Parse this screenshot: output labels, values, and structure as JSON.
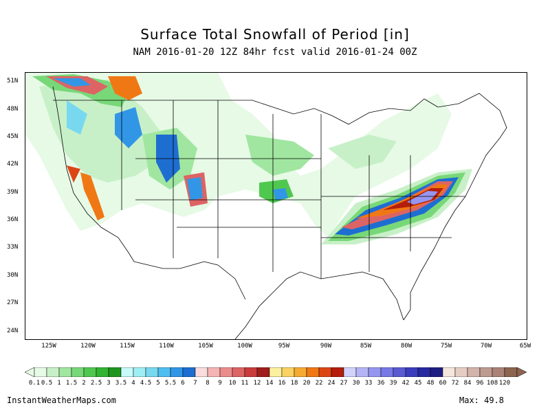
{
  "title": "Surface Total Snowfall of Period [in]",
  "subtitle": "NAM 2016-01-20 12Z 84hr fcst valid 2016-01-24 00Z",
  "lat_labels": [
    "51N",
    "48N",
    "45N",
    "42N",
    "39N",
    "36N",
    "33N",
    "30N",
    "27N",
    "24N"
  ],
  "lon_labels": [
    "125W",
    "120W",
    "115W",
    "110W",
    "105W",
    "100W",
    "95W",
    "90W",
    "85W",
    "80W",
    "75W",
    "70W",
    "65W"
  ],
  "legend": {
    "labels": [
      "0.1",
      "0.5",
      "1",
      "1.5",
      "2",
      "2.5",
      "3",
      "3.5",
      "4",
      "4.5",
      "5",
      "5.5",
      "6",
      "7",
      "8",
      "9",
      "10",
      "11",
      "12",
      "14",
      "16",
      "18",
      "20",
      "22",
      "24",
      "27",
      "30",
      "33",
      "36",
      "39",
      "42",
      "45",
      "48",
      "60",
      "72",
      "84",
      "96",
      "108",
      "120"
    ],
    "colors": [
      "#e6fae6",
      "#c8f0c8",
      "#a0e6a0",
      "#78d878",
      "#50c850",
      "#32b432",
      "#1e961e",
      "#c8fafa",
      "#a0eef5",
      "#78d8f0",
      "#50bef0",
      "#3296e6",
      "#1e6ed2",
      "#fadcdc",
      "#f5b4b4",
      "#eb8c8c",
      "#dc6464",
      "#c83c3c",
      "#a01e1e",
      "#faf0a0",
      "#fad264",
      "#f5aa32",
      "#f07814",
      "#dc4614",
      "#b41e0a",
      "#d2d2fa",
      "#b4b4f5",
      "#9696f0",
      "#7878e6",
      "#5a5ad2",
      "#3c3cbe",
      "#2828a0",
      "#1e1e82",
      "#f5e6dc",
      "#e6cdc3",
      "#d2b4aa",
      "#be9b91",
      "#aa8278",
      "#8c6450"
    ]
  },
  "footer": {
    "site": "InstantWeatherMaps.com",
    "max_label": "Max:  49.8"
  }
}
